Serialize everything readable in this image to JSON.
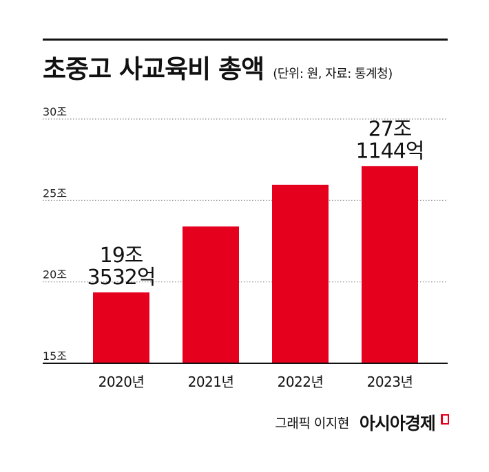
{
  "header": {
    "title": "초중고 사교육비 총액",
    "subtitle": "(단위: 원, 자료: 통계청)"
  },
  "chart_data": {
    "type": "bar",
    "title": "초중고 사교육비 총액",
    "subtitle": "(단위: 원, 자료: 통계청)",
    "categories": [
      "2020년",
      "2021년",
      "2022년",
      "2023년"
    ],
    "values": [
      19.3532,
      23.4,
      25.9538,
      27.1144
    ],
    "ylim": [
      15,
      30
    ],
    "yticks": [
      15,
      20,
      25,
      30
    ],
    "ytick_labels": [
      "15조",
      "20조",
      "25조",
      "30조"
    ],
    "grid": true,
    "bar_color": "#e5001d",
    "annotations": [
      {
        "category": "2020년",
        "lines": [
          "19조",
          "3532억"
        ]
      },
      {
        "category": "2023년",
        "lines": [
          "27조",
          "1144억"
        ]
      }
    ]
  },
  "footer": {
    "credit": "그래픽 이지현",
    "brand": "아시아경제"
  },
  "colors": {
    "accent": "#e5001d",
    "text": "#111111",
    "grid": "#888888"
  }
}
